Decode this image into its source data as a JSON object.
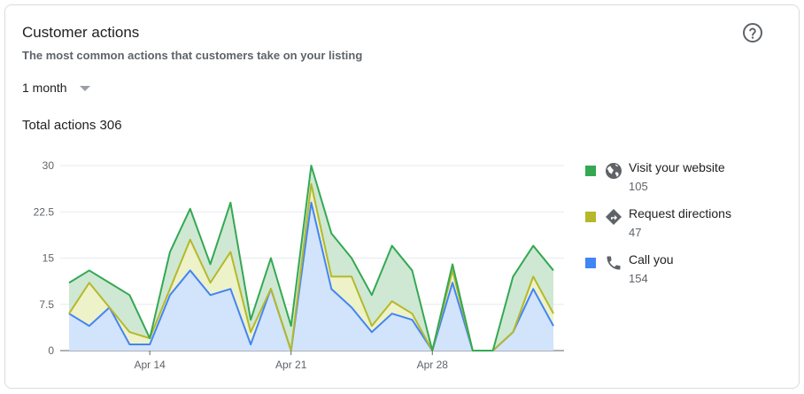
{
  "card": {
    "title": "Customer actions",
    "subtitle": "The most common actions that customers take on your listing",
    "help_icon": "help-circle-icon",
    "period_selector": {
      "selected": "1 month",
      "icon": "caret-down-icon"
    },
    "total": "Total actions 306"
  },
  "legend": [
    {
      "label": "Visit your website",
      "value": "105",
      "color": "#34a853",
      "icon": "globe-icon"
    },
    {
      "label": "Request directions",
      "value": "47",
      "color": "#b5b82a",
      "icon": "directions-icon"
    },
    {
      "label": "Call you",
      "value": "154",
      "color": "#4285f4",
      "icon": "phone-icon"
    }
  ],
  "chart_data": {
    "type": "area",
    "stacked": true,
    "y_ticks": [
      "30",
      "22.5",
      "15",
      "7.5",
      "0"
    ],
    "ylim": [
      0,
      30
    ],
    "x_ticks": [
      {
        "label": "Apr 14",
        "index": 4
      },
      {
        "label": "Apr 21",
        "index": 11
      },
      {
        "label": "Apr 28",
        "index": 18
      }
    ],
    "grid": true,
    "series": [
      {
        "name": "Call you",
        "color": "#4285f4",
        "fill": "#d2e3fc",
        "values": [
          6,
          4,
          7,
          1,
          1,
          9,
          13,
          9,
          10,
          1,
          10,
          0,
          24,
          10,
          7,
          3,
          6,
          5,
          0,
          11,
          0,
          0,
          3,
          10,
          4
        ]
      },
      {
        "name": "Request directions",
        "color": "#b5b82a",
        "fill": "#eef2c9",
        "values": [
          0,
          7,
          0,
          2,
          1,
          1,
          5,
          2,
          6,
          2,
          0,
          0,
          3,
          2,
          5,
          1,
          2,
          1,
          0,
          2,
          0,
          0,
          0,
          2,
          2
        ]
      },
      {
        "name": "Visit your website",
        "color": "#34a853",
        "fill": "#cfe8d3",
        "values": [
          5,
          2,
          4,
          6,
          0,
          6,
          5,
          3,
          8,
          2,
          5,
          4,
          3,
          7,
          3,
          5,
          9,
          7,
          0,
          1,
          0,
          0,
          9,
          5,
          7
        ]
      }
    ]
  }
}
